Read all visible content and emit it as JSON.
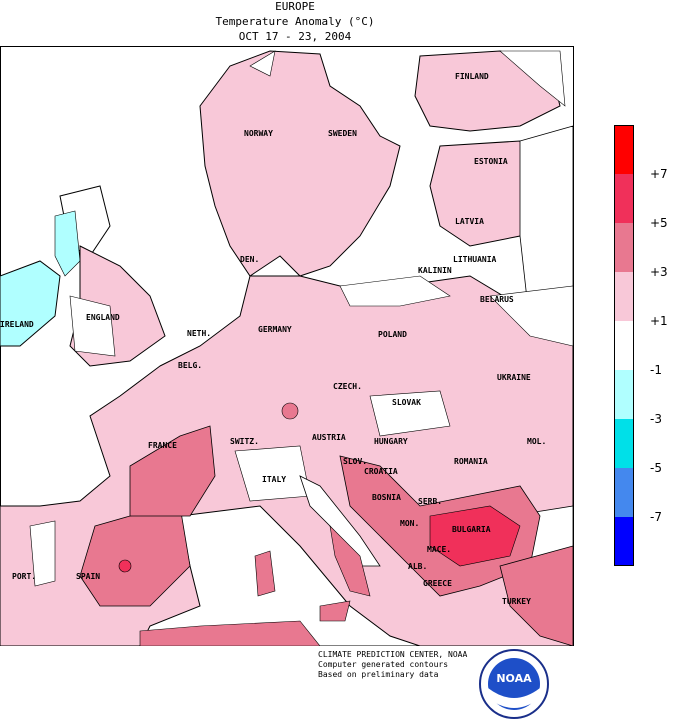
{
  "header": {
    "line1": "EUROPE",
    "line2": "Temperature Anomaly (°C)",
    "line3": "OCT 17 - 23, 2004"
  },
  "legend": {
    "labels": [
      "+7",
      "+5",
      "+3",
      "+1",
      "-1",
      "-3",
      "-5",
      "-7"
    ],
    "colors": [
      "#ff0000",
      "#f0305a",
      "#e87890",
      "#f8c8d8",
      "#ffffff",
      "#b0ffff",
      "#00e0e8",
      "#4488ee",
      "#0000ff"
    ]
  },
  "countries": {
    "finland": "FINLAND",
    "norway": "NORWAY",
    "sweden": "SWEDEN",
    "estonia": "ESTONIA",
    "latvia": "LATVIA",
    "lithuania": "LITHUANIA",
    "kalinin": "KALININ",
    "belarus": "BELARUS",
    "den": "DEN.",
    "ireland": "IRELAND",
    "england": "ENGLAND",
    "neth": "NETH.",
    "germany": "GERMANY",
    "poland": "POLAND",
    "belg": "BELG.",
    "czech": "CZECH.",
    "ukraine": "UKRAINE",
    "slovak": "SLOVAK",
    "austria": "AUSTRIA",
    "hungary": "HUNGARY",
    "mol": "MOL.",
    "france": "FRANCE",
    "switz": "SWITZ.",
    "slov": "SLOV.",
    "croatia": "CROATIA",
    "romania": "ROMANIA",
    "bosnia": "BOSNIA",
    "italy": "ITALY",
    "serb": "SERB.",
    "bulgaria": "BULGARIA",
    "mon": "MON.",
    "mace": "MACE.",
    "port": "PORT.",
    "spain": "SPAIN",
    "alb": "ALB.",
    "greece": "GREECE",
    "turkey": "TURKEY"
  },
  "credits": {
    "line1": "CLIMATE PREDICTION CENTER, NOAA",
    "line2": "Computer generated contours",
    "line3": "Based on preliminary data"
  },
  "logo": {
    "text": "NOAA"
  }
}
